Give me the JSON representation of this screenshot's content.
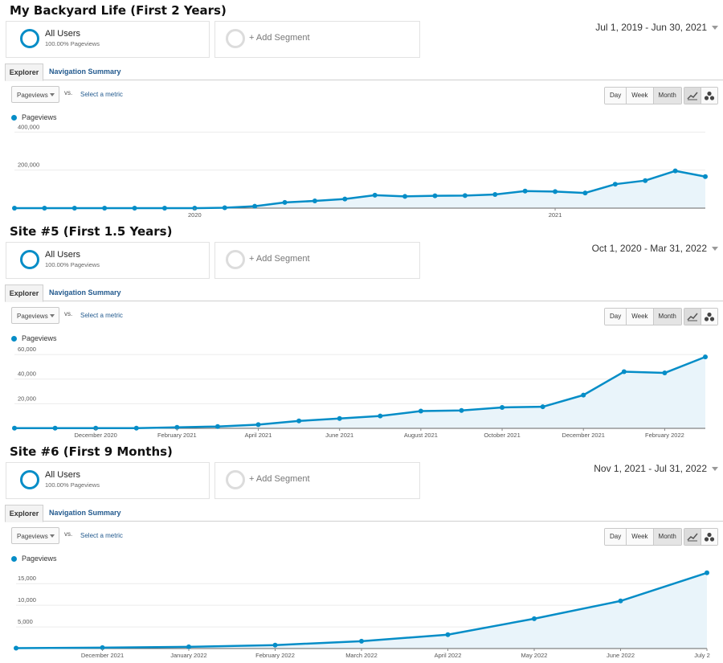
{
  "panels": [
    {
      "title": "My Backyard Life (First 2 Years)",
      "segment_primary": {
        "name": "All Users",
        "sub": "100.00% Pageviews"
      },
      "segment_add": "+ Add Segment",
      "date_range": "Jul 1, 2019 - Jun 30, 2021",
      "tabs": {
        "explorer": "Explorer",
        "nav_summary": "Navigation Summary"
      },
      "metric_select": "Pageviews",
      "vs": "vs.",
      "select_metric": "Select a metric",
      "granularity": [
        "Day",
        "Week",
        "Month"
      ],
      "legend": "Pageviews",
      "chart_data": {
        "type": "area",
        "series": [
          {
            "name": "Pageviews",
            "values": [
              0,
              0,
              0,
              0,
              0,
              0,
              0,
              2000,
              10000,
              30000,
              38000,
              48000,
              68000,
              62000,
              65000,
              66000,
              72000,
              90000,
              87000,
              80000,
              126000,
              145000,
              196000,
              166000
            ]
          }
        ],
        "ylim": [
          0,
          410000
        ],
        "yticks": [
          {
            "value": 200000,
            "label": "200,000"
          },
          {
            "value": 400000,
            "label": "400,000"
          }
        ],
        "xticks": [
          {
            "index": 6,
            "label": "2020"
          },
          {
            "index": 18,
            "label": "2021"
          }
        ],
        "grid": true
      }
    },
    {
      "title": "Site #5 (First 1.5 Years)",
      "segment_primary": {
        "name": "All Users",
        "sub": "100.00% Pageviews"
      },
      "segment_add": "+ Add Segment",
      "date_range": "Oct 1, 2020 - Mar 31, 2022",
      "tabs": {
        "explorer": "Explorer",
        "nav_summary": "Navigation Summary"
      },
      "metric_select": "Pageviews",
      "vs": "vs.",
      "select_metric": "Select a metric",
      "granularity": [
        "Day",
        "Week",
        "Month"
      ],
      "legend": "Pageviews",
      "chart_data": {
        "type": "area",
        "series": [
          {
            "name": "Pageviews",
            "values": [
              200,
              200,
              200,
              200,
              800,
              1500,
              3000,
              6000,
              8000,
              10000,
              14000,
              14500,
              17000,
              17500,
              27000,
              46000,
              45000,
              58000
            ]
          }
        ],
        "ylim": [
          0,
          62000
        ],
        "yticks": [
          {
            "value": 20000,
            "label": "20,000"
          },
          {
            "value": 40000,
            "label": "40,000"
          },
          {
            "value": 60000,
            "label": "60,000"
          }
        ],
        "xticks": [
          {
            "index": 2,
            "label": "December 2020"
          },
          {
            "index": 4,
            "label": "February 2021"
          },
          {
            "index": 6,
            "label": "April 2021"
          },
          {
            "index": 8,
            "label": "June 2021"
          },
          {
            "index": 10,
            "label": "August 2021"
          },
          {
            "index": 12,
            "label": "October 2021"
          },
          {
            "index": 14,
            "label": "December 2021"
          },
          {
            "index": 16,
            "label": "February 2022"
          }
        ],
        "grid": true
      }
    },
    {
      "title": "Site #6 (First 9 Months)",
      "segment_primary": {
        "name": "All Users",
        "sub": "100.00% Pageviews"
      },
      "segment_add": "+ Add Segment",
      "date_range": "Nov 1, 2021 - Jul 31, 2022",
      "tabs": {
        "explorer": "Explorer",
        "nav_summary": "Navigation Summary"
      },
      "metric_select": "Pageviews",
      "vs": "vs.",
      "select_metric": "Select a metric",
      "granularity": [
        "Day",
        "Week",
        "Month"
      ],
      "legend": "Pageviews",
      "chart_data": {
        "type": "area",
        "series": [
          {
            "name": "Pageviews",
            "values": [
              100,
              200,
              400,
              800,
              1700,
              3200,
              6900,
              11000,
              17500
            ]
          }
        ],
        "ylim": [
          0,
          18200
        ],
        "yticks": [
          {
            "value": 5000,
            "label": "5,000"
          },
          {
            "value": 10000,
            "label": "10,000"
          },
          {
            "value": 15000,
            "label": "15,000"
          }
        ],
        "xticks": [
          {
            "index": 1,
            "label": "December 2021"
          },
          {
            "index": 2,
            "label": "January 2022"
          },
          {
            "index": 3,
            "label": "February 2022"
          },
          {
            "index": 4,
            "label": "March 2022"
          },
          {
            "index": 5,
            "label": "April 2022"
          },
          {
            "index": 6,
            "label": "May 2022"
          },
          {
            "index": 7,
            "label": "June 2022"
          },
          {
            "index": 8,
            "label": "July 2"
          }
        ],
        "grid": true
      }
    }
  ],
  "colors": {
    "line": "#058dc7",
    "area": "#e9f4fa",
    "grid": "#ececec"
  }
}
